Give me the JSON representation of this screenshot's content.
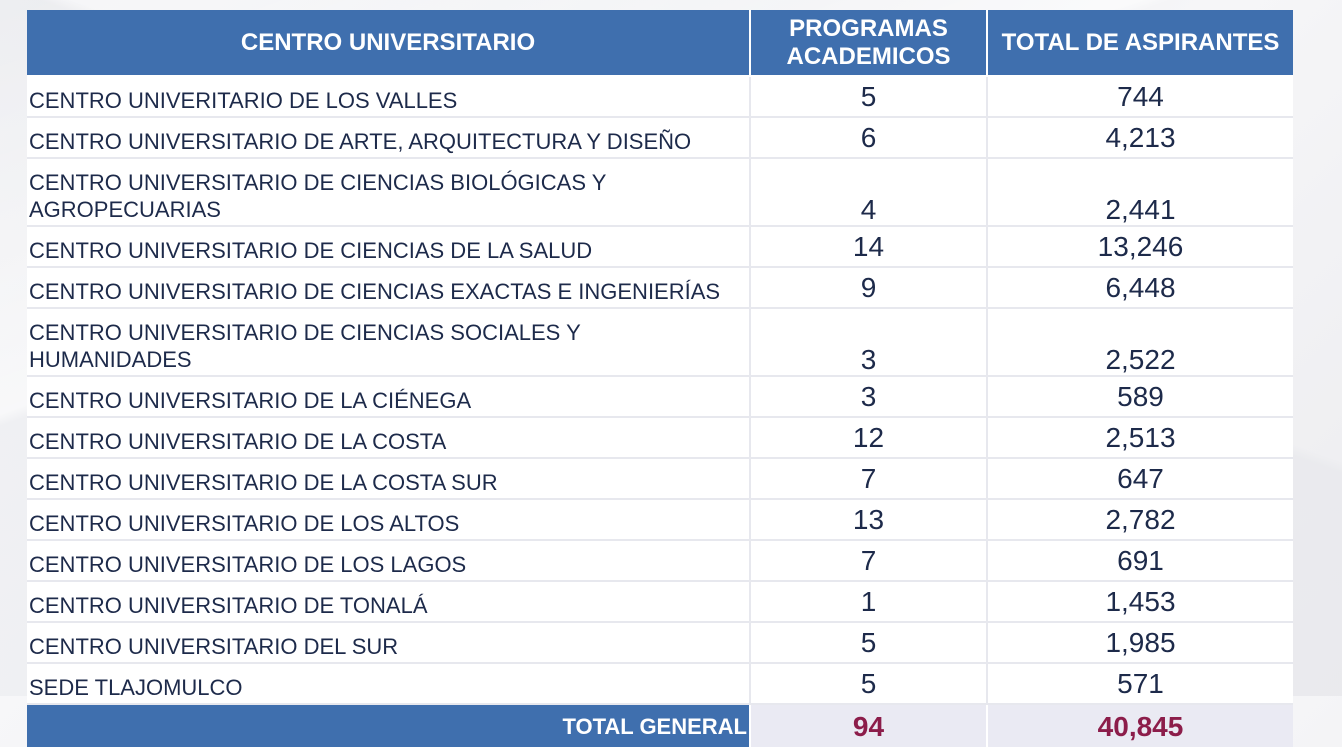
{
  "table": {
    "headers": {
      "centro": "CENTRO UNIVERSITARIO",
      "programas_line1": "PROGRAMAS",
      "programas_line2": "ACADEMICOS",
      "aspirantes": "TOTAL DE ASPIRANTES"
    },
    "rows": [
      {
        "centro": "CENTRO UNIVERITARIO DE LOS VALLES",
        "programas": "5",
        "aspirantes": "744"
      },
      {
        "centro": "CENTRO UNIVERSITARIO DE ARTE, ARQUITECTURA Y DISEÑO",
        "programas": "6",
        "aspirantes": "4,213"
      },
      {
        "centro": "CENTRO UNIVERSITARIO DE CIENCIAS BIOLÓGICAS Y AGROPECUARIAS",
        "programas": "4",
        "aspirantes": "2,441"
      },
      {
        "centro": "CENTRO UNIVERSITARIO DE CIENCIAS DE LA SALUD",
        "programas": "14",
        "aspirantes": "13,246"
      },
      {
        "centro": "CENTRO UNIVERSITARIO DE CIENCIAS EXACTAS E INGENIERÍAS",
        "programas": "9",
        "aspirantes": "6,448"
      },
      {
        "centro": "CENTRO UNIVERSITARIO DE CIENCIAS SOCIALES Y HUMANIDADES",
        "programas": "3",
        "aspirantes": "2,522"
      },
      {
        "centro": "CENTRO UNIVERSITARIO DE LA CIÉNEGA",
        "programas": "3",
        "aspirantes": "589"
      },
      {
        "centro": "CENTRO UNIVERSITARIO DE LA COSTA",
        "programas": "12",
        "aspirantes": "2,513"
      },
      {
        "centro": "CENTRO UNIVERSITARIO DE LA COSTA SUR",
        "programas": "7",
        "aspirantes": "647"
      },
      {
        "centro": "CENTRO UNIVERSITARIO DE LOS ALTOS",
        "programas": "13",
        "aspirantes": "2,782"
      },
      {
        "centro": "CENTRO UNIVERSITARIO DE LOS LAGOS",
        "programas": "7",
        "aspirantes": "691"
      },
      {
        "centro": "CENTRO UNIVERSITARIO DE TONALÁ",
        "programas": "1",
        "aspirantes": "1,453"
      },
      {
        "centro": "CENTRO UNIVERSITARIO DEL SUR",
        "programas": "5",
        "aspirantes": "1,985"
      },
      {
        "centro": "SEDE TLAJOMULCO",
        "programas": "5",
        "aspirantes": "571"
      }
    ],
    "total": {
      "label": "TOTAL GENERAL",
      "programas": "94",
      "aspirantes": "40,845"
    }
  },
  "colors": {
    "header_bg": "#3f6fae",
    "total_value": "#8c1d4a",
    "total_row_bg": "#eaeaf3"
  }
}
